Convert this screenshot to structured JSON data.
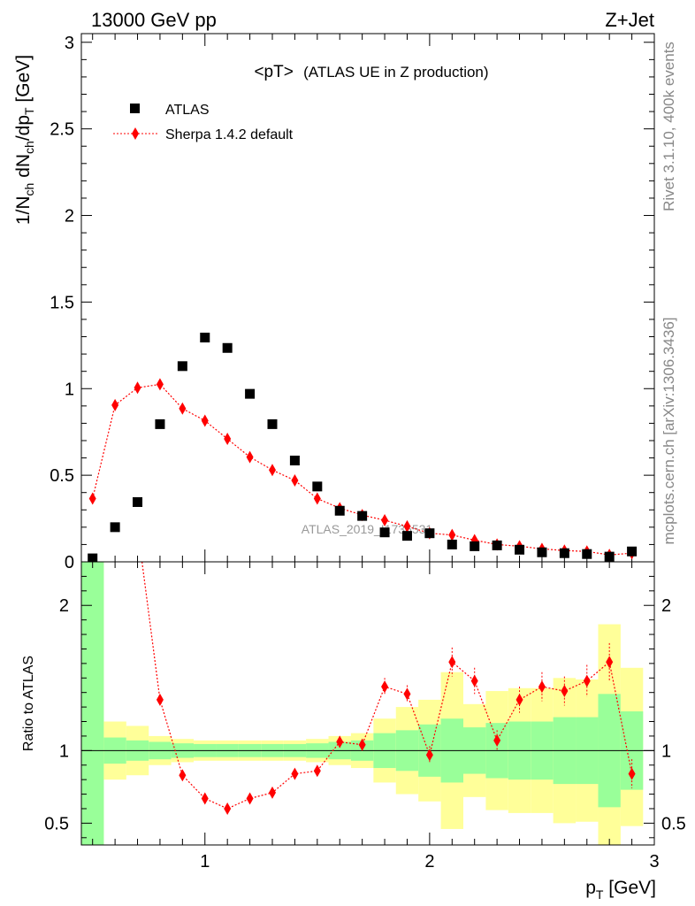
{
  "header": {
    "left_label": "13000 GeV pp",
    "right_label": "Z+Jet",
    "side_info": "Rivet 3.1.10,  400k events",
    "side_url": "mcplots.cern.ch [arXiv:1306.3436]",
    "watermark": "ATLAS_2019_I1736531"
  },
  "colors": {
    "data_marker": "#000000",
    "mc_line": "#ff0000",
    "band_inner": "#99ff99",
    "band_outer": "#ffff99"
  },
  "chart_data": [
    {
      "type": "scatter",
      "title": "<pT>",
      "subtitle": "(ATLAS UE in Z production)",
      "xlabel": "p_T [GeV]",
      "ylabel": "1/N_ch dN_ch/dp_T [GeV]",
      "xlim": [
        0.45,
        3.0
      ],
      "ylim": [
        0,
        3.05
      ],
      "yticks": [
        0,
        0.5,
        1,
        1.5,
        2,
        2.5,
        3
      ],
      "ytick_labels": [
        "0",
        "0.5",
        "1",
        "1.5",
        "2",
        "2.5",
        "3"
      ],
      "legend": {
        "position": "top-left",
        "entries": [
          "ATLAS",
          "Sherpa 1.4.2 default"
        ]
      },
      "series": [
        {
          "name": "ATLAS",
          "marker": "square",
          "x": [
            0.5,
            0.6,
            0.7,
            0.8,
            0.9,
            1.0,
            1.1,
            1.2,
            1.3,
            1.4,
            1.5,
            1.6,
            1.7,
            1.8,
            1.9,
            2.0,
            2.1,
            2.2,
            2.3,
            2.4,
            2.5,
            2.6,
            2.7,
            2.8,
            2.9
          ],
          "y": [
            0.02,
            0.2,
            0.345,
            0.795,
            1.13,
            1.295,
            1.235,
            0.97,
            0.795,
            0.585,
            0.435,
            0.295,
            0.265,
            0.17,
            0.15,
            0.165,
            0.1,
            0.09,
            0.095,
            0.07,
            0.055,
            0.05,
            0.045,
            0.03,
            0.06
          ]
        },
        {
          "name": "Sherpa 1.4.2 default",
          "marker": "diamond",
          "line": "dotted",
          "x": [
            0.5,
            0.6,
            0.7,
            0.8,
            0.9,
            1.0,
            1.1,
            1.2,
            1.3,
            1.4,
            1.5,
            1.6,
            1.7,
            1.8,
            1.9,
            2.0,
            2.1,
            2.2,
            2.3,
            2.4,
            2.5,
            2.6,
            2.7,
            2.8,
            2.9
          ],
          "y": [
            0.365,
            0.905,
            1.005,
            1.025,
            0.885,
            0.815,
            0.71,
            0.605,
            0.53,
            0.47,
            0.365,
            0.31,
            0.27,
            0.24,
            0.205,
            0.165,
            0.155,
            0.125,
            0.1,
            0.09,
            0.075,
            0.065,
            0.06,
            0.04,
            0.05
          ]
        }
      ]
    },
    {
      "type": "scatter",
      "title": "",
      "xlabel": "p_T [GeV]",
      "ylabel": "Ratio to ATLAS",
      "xlim": [
        0.45,
        3.0
      ],
      "ylim": [
        0.35,
        2.3
      ],
      "xticks": [
        1,
        2,
        3
      ],
      "xtick_labels": [
        "1",
        "2",
        "3"
      ],
      "yticks": [
        0.5,
        1,
        2
      ],
      "ytick_labels": [
        "0.5",
        "1",
        "2"
      ],
      "reference_line": 1.0,
      "bands": [
        {
          "name": "ATLAS uncertainty",
          "x_edges": [
            0.45,
            0.55,
            0.65,
            0.75,
            0.85,
            0.95,
            1.05,
            1.15,
            1.25,
            1.35,
            1.45,
            1.55,
            1.65,
            1.75,
            1.85,
            1.95,
            2.05,
            2.15,
            2.25,
            2.35,
            2.45,
            2.55,
            2.65,
            2.75,
            2.85,
            2.95
          ],
          "inner_low": [
            0.35,
            0.91,
            0.93,
            0.94,
            0.95,
            0.955,
            0.955,
            0.955,
            0.955,
            0.955,
            0.95,
            0.94,
            0.93,
            0.88,
            0.86,
            0.82,
            0.78,
            0.84,
            0.81,
            0.8,
            0.8,
            0.77,
            0.77,
            0.61,
            0.73
          ],
          "inner_high": [
            2.35,
            1.09,
            1.07,
            1.06,
            1.05,
            1.045,
            1.045,
            1.045,
            1.045,
            1.045,
            1.05,
            1.06,
            1.07,
            1.12,
            1.14,
            1.18,
            1.22,
            1.16,
            1.19,
            1.2,
            1.2,
            1.23,
            1.23,
            1.39,
            1.27
          ],
          "outer_low": [
            0.35,
            0.8,
            0.83,
            0.9,
            0.92,
            0.93,
            0.93,
            0.93,
            0.93,
            0.93,
            0.92,
            0.9,
            0.88,
            0.78,
            0.7,
            0.65,
            0.46,
            0.68,
            0.59,
            0.57,
            0.57,
            0.5,
            0.51,
            0.35,
            0.48
          ],
          "outer_high": [
            2.35,
            1.2,
            1.17,
            1.1,
            1.08,
            1.07,
            1.07,
            1.07,
            1.07,
            1.07,
            1.08,
            1.1,
            1.12,
            1.22,
            1.3,
            1.35,
            1.54,
            1.32,
            1.41,
            1.43,
            1.43,
            1.5,
            1.49,
            1.87,
            1.57
          ]
        }
      ],
      "series": [
        {
          "name": "Sherpa 1.4.2 default / ATLAS",
          "marker": "diamond",
          "line": "dotted",
          "x": [
            0.8,
            0.9,
            1.0,
            1.1,
            1.2,
            1.3,
            1.4,
            1.5,
            1.6,
            1.7,
            1.8,
            1.9,
            2.0,
            2.1,
            2.2,
            2.3,
            2.4,
            2.5,
            2.6,
            2.7,
            2.8,
            2.9
          ],
          "y": [
            1.35,
            0.83,
            0.67,
            0.6,
            0.67,
            0.71,
            0.84,
            0.86,
            1.06,
            1.04,
            1.44,
            1.39,
            0.97,
            1.61,
            1.48,
            1.07,
            1.35,
            1.44,
            1.41,
            1.48,
            1.61,
            0.84
          ],
          "err": [
            0.02,
            0.02,
            0.02,
            0.02,
            0.02,
            0.02,
            0.03,
            0.03,
            0.04,
            0.04,
            0.06,
            0.06,
            0.06,
            0.1,
            0.09,
            0.07,
            0.09,
            0.1,
            0.1,
            0.11,
            0.13,
            0.1
          ]
        }
      ]
    }
  ]
}
